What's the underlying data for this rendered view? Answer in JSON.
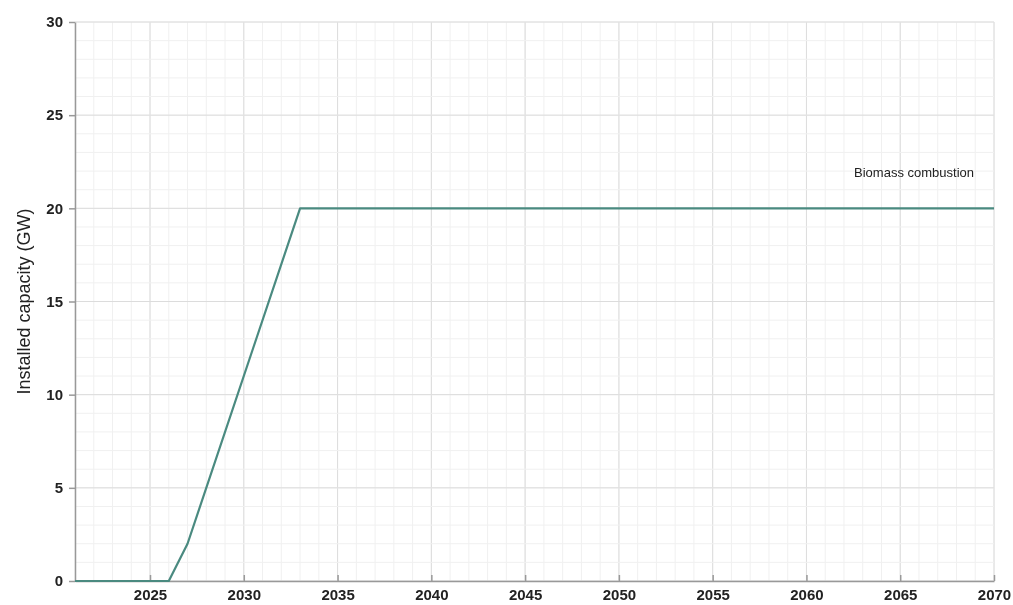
{
  "chart_data": {
    "type": "line",
    "ylabel": "Installed capacity (GW)",
    "x": [
      2021,
      2026,
      2027,
      2033,
      2070
    ],
    "series": [
      {
        "name": "Biomass combustion",
        "color": "#4a8a80",
        "values": [
          0,
          0,
          2,
          20,
          20
        ]
      }
    ],
    "xlim": [
      2021,
      2070
    ],
    "xticks": [
      2025,
      2030,
      2035,
      2040,
      2045,
      2050,
      2055,
      2060,
      2065,
      2070
    ],
    "ylim": [
      0,
      30
    ],
    "yticks": [
      0,
      5,
      10,
      15,
      20,
      25,
      30
    ],
    "grid": true,
    "legend": "top right",
    "marker": "none",
    "line_style": "solid"
  }
}
